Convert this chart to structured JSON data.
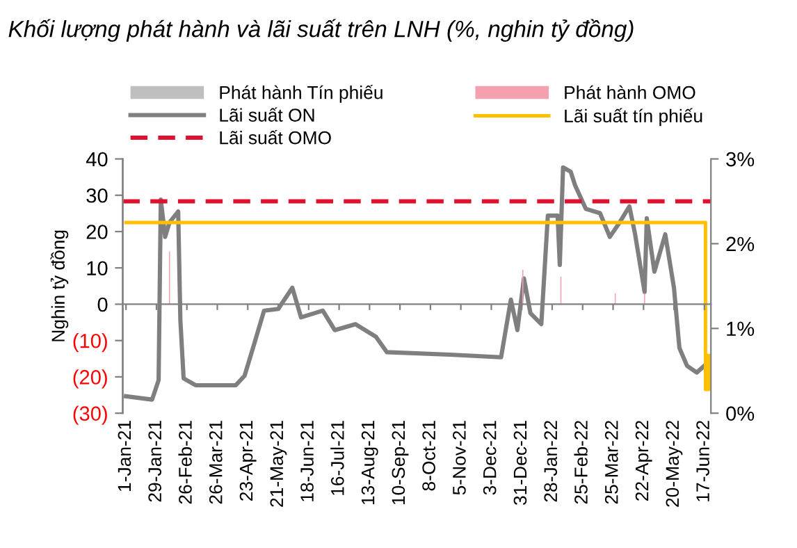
{
  "chart_data": {
    "type": "line",
    "title": "Khối lượng phát hành và lãi suất trên LNH (%, nghin tỷ đồng)",
    "ylabel": "Nghin tỷ đồng",
    "xlim": [
      "2020-12-29",
      "2022-06-23"
    ],
    "xticks": [
      {
        "value": "2021-01-01",
        "label": "1-Jan-21"
      },
      {
        "value": "2021-01-29",
        "label": "29-Jan-21"
      },
      {
        "value": "2021-02-26",
        "label": "26-Feb-21"
      },
      {
        "value": "2021-03-26",
        "label": "26-Mar-21"
      },
      {
        "value": "2021-04-23",
        "label": "23-Apr-21"
      },
      {
        "value": "2021-05-21",
        "label": "21-May-21"
      },
      {
        "value": "2021-06-18",
        "label": "18-Jun-21"
      },
      {
        "value": "2021-07-16",
        "label": "16-Jul-21"
      },
      {
        "value": "2021-08-13",
        "label": "13-Aug-21"
      },
      {
        "value": "2021-09-10",
        "label": "10-Sep-21"
      },
      {
        "value": "2021-10-08",
        "label": "8-Oct-21"
      },
      {
        "value": "2021-11-05",
        "label": "5-Nov-21"
      },
      {
        "value": "2021-12-03",
        "label": "3-Dec-21"
      },
      {
        "value": "2021-12-31",
        "label": "31-Dec-21"
      },
      {
        "value": "2022-01-28",
        "label": "28-Jan-22"
      },
      {
        "value": "2022-02-25",
        "label": "25-Feb-22"
      },
      {
        "value": "2022-03-25",
        "label": "25-Mar-22"
      },
      {
        "value": "2022-04-22",
        "label": "22-Apr-22"
      },
      {
        "value": "2022-05-20",
        "label": "20-May-22"
      },
      {
        "value": "2022-06-17",
        "label": "17-Jun-22"
      }
    ],
    "ylim": [
      -30,
      40
    ],
    "yticks": [
      {
        "value": -30,
        "label": "(30)"
      },
      {
        "value": -20,
        "label": "(20)"
      },
      {
        "value": -10,
        "label": "(10)"
      },
      0,
      10,
      20,
      30,
      40
    ],
    "y2lim": [
      0,
      3
    ],
    "y2ticks": [
      {
        "value": 0,
        "label": "0%"
      },
      {
        "value": 1,
        "label": "1%"
      },
      {
        "value": 2,
        "label": "2%"
      },
      {
        "value": 3,
        "label": "3%"
      }
    ],
    "legend": "top",
    "marker": "none",
    "series": [
      {
        "name": "Phát hành Tín phiếu",
        "type": "bar",
        "color": "#bfbfbf"
      },
      {
        "name": "Phát hành OMO",
        "type": "bar",
        "color": "#f4a0ae",
        "x": [
          "2021-02-10",
          "2022-01-01",
          "2022-02-05",
          "2022-03-27",
          "2022-04-23"
        ],
        "values": [
          14.5,
          9.5,
          7.6,
          3,
          3
        ]
      },
      {
        "name": "Lãi suất ON",
        "axis": "y2",
        "color": "#7f7f7f",
        "x": [
          "2021-01-01",
          "2021-01-25",
          "2021-01-31",
          "2021-02-02",
          "2021-02-06",
          "2021-02-10",
          "2021-02-18",
          "2021-02-20",
          "2021-02-23",
          "2021-03-06",
          "2021-04-12",
          "2021-04-20",
          "2021-04-29",
          "2021-05-08",
          "2021-05-21",
          "2021-06-03",
          "2021-06-11",
          "2021-07-01",
          "2021-07-12",
          "2021-07-31",
          "2021-08-19",
          "2021-08-29",
          "2021-10-26",
          "2021-12-12",
          "2021-12-21",
          "2021-12-27",
          "2022-01-02",
          "2022-01-08",
          "2022-01-18",
          "2022-01-24",
          "2022-02-02",
          "2022-02-04",
          "2022-02-07",
          "2022-02-14",
          "2022-02-18",
          "2022-02-28",
          "2022-03-13",
          "2022-03-22",
          "2022-03-31",
          "2022-04-09",
          "2022-04-14",
          "2022-04-23",
          "2022-04-25",
          "2022-05-02",
          "2022-05-12",
          "2022-05-20",
          "2022-05-25",
          "2022-06-01",
          "2022-06-10",
          "2022-06-17"
        ],
        "values": [
          0.2,
          0.16,
          0.39,
          2.52,
          2.08,
          2.25,
          2.38,
          1.1,
          0.41,
          0.33,
          0.33,
          0.44,
          0.82,
          1.21,
          1.23,
          1.48,
          1.13,
          1.21,
          0.98,
          1.05,
          0.9,
          0.72,
          0.69,
          0.66,
          1.34,
          0.98,
          1.59,
          1.18,
          1.05,
          2.33,
          2.33,
          1.75,
          2.9,
          2.85,
          2.69,
          2.41,
          2.36,
          2.08,
          2.25,
          2.44,
          2.13,
          1.43,
          2.3,
          1.67,
          2.11,
          1.48,
          0.77,
          0.56,
          0.48,
          0.56
        ]
      },
      {
        "name": "Lãi suất tín phiếu",
        "type": "step",
        "axis": "y2",
        "color": "#ffc000",
        "x": [
          "2021-01-01",
          "2022-06-17",
          "2022-06-18",
          "2022-06-21"
        ],
        "values": [
          2.25,
          2.25,
          0.28,
          0.68
        ]
      }
    ],
    "ref_lines": [
      {
        "axis": "y2",
        "value": 2.5,
        "label": "Lãi suất OMO",
        "color": "#e0102f",
        "line_style": "dashed"
      }
    ]
  }
}
